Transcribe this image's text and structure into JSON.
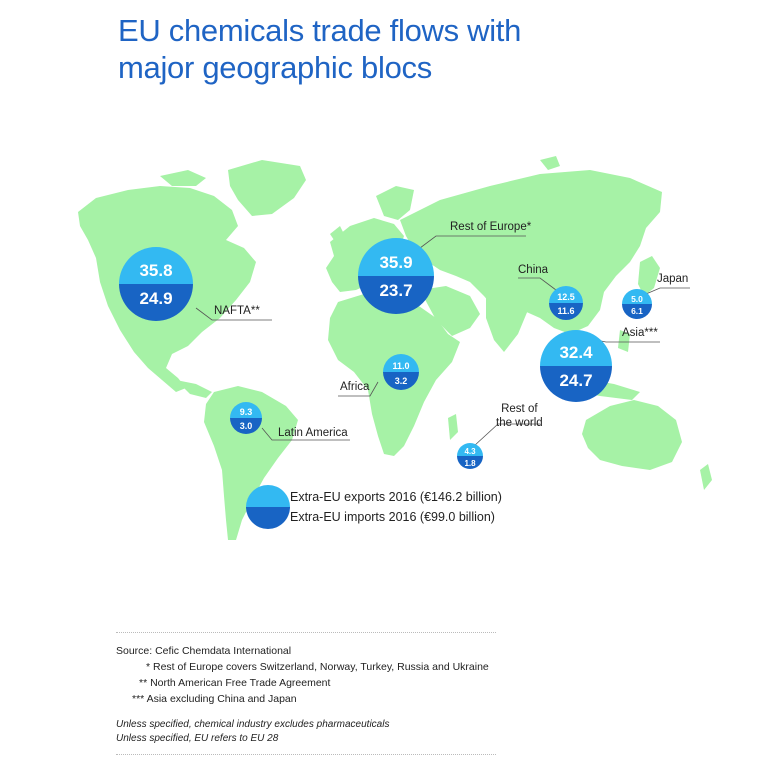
{
  "title": {
    "line1": "EU chemicals trade flows with",
    "line2": "major geographic blocs"
  },
  "colors": {
    "land": "#a6f2a6",
    "exports": "#33b9f2",
    "imports": "#1864c4",
    "title": "#1f64c4"
  },
  "blocs": [
    {
      "id": "nafta",
      "label": "NAFTA**",
      "exports": "35.8",
      "imports": "24.9"
    },
    {
      "id": "rest-of-europe",
      "label": "Rest of Europe*",
      "exports": "35.9",
      "imports": "23.7"
    },
    {
      "id": "china",
      "label": "China",
      "exports": "12.5",
      "imports": "11.6"
    },
    {
      "id": "japan",
      "label": "Japan",
      "exports": "5.0",
      "imports": "6.1"
    },
    {
      "id": "asia",
      "label": "Asia***",
      "exports": "32.4",
      "imports": "24.7"
    },
    {
      "id": "africa",
      "label": "Africa",
      "exports": "11.0",
      "imports": "3.2"
    },
    {
      "id": "latin-america",
      "label": "Latin America",
      "exports": "9.3",
      "imports": "3.0"
    },
    {
      "id": "rest-of-world",
      "label_line1": "Rest of",
      "label_line2": "the world",
      "exports": "4.3",
      "imports": "1.8"
    }
  ],
  "legend": {
    "exports": "Extra-EU exports 2016 (€146.2 billion)",
    "imports": "Extra-EU imports 2016 (€99.0 billion)"
  },
  "source": "Source: Cefic Chemdata International",
  "notes": [
    "* Rest of Europe covers Switzerland, Norway, Turkey, Russia and Ukraine",
    "** North American Free Trade Agreement",
    "*** Asia excluding China and Japan"
  ],
  "italic_notes": [
    "Unless specified, chemical industry excludes pharmaceuticals",
    "Unless specified, EU refers to EU 28"
  ]
}
